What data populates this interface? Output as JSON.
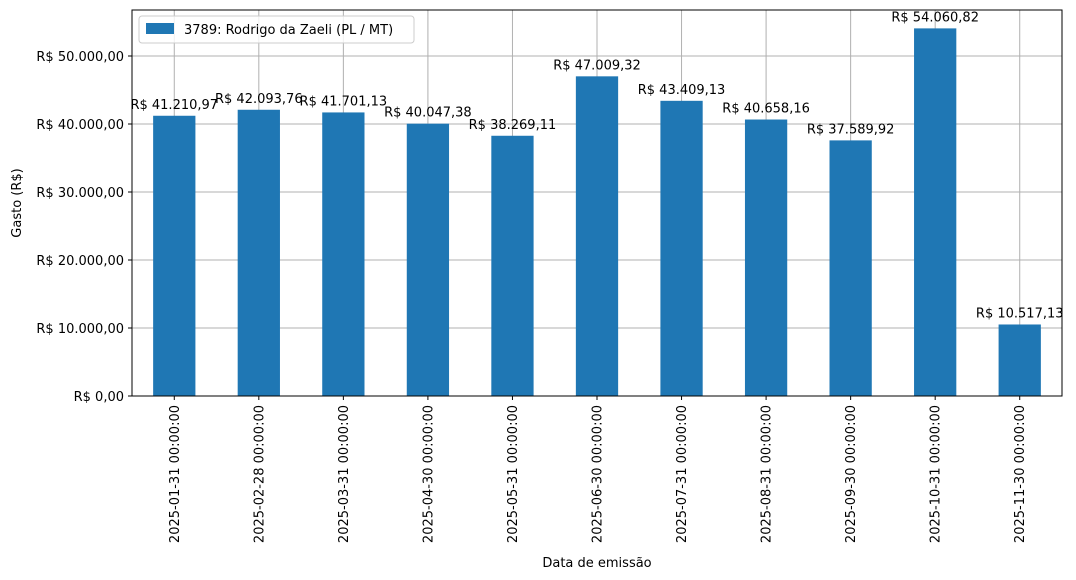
{
  "chart_data": {
    "type": "bar",
    "xlabel": "Data de emissão",
    "ylabel": "Gasto (R$)",
    "categories": [
      "2025-01-31 00:00:00",
      "2025-02-28 00:00:00",
      "2025-03-31 00:00:00",
      "2025-04-30 00:00:00",
      "2025-05-31 00:00:00",
      "2025-06-30 00:00:00",
      "2025-07-31 00:00:00",
      "2025-08-31 00:00:00",
      "2025-09-30 00:00:00",
      "2025-10-31 00:00:00",
      "2025-11-30 00:00:00"
    ],
    "series": [
      {
        "name": "3789: Rodrigo da Zaeli (PL / MT)",
        "color": "#1f77b4",
        "values": [
          41210.97,
          42093.76,
          41701.13,
          40047.38,
          38269.11,
          47009.32,
          43409.13,
          40658.16,
          37589.92,
          54060.82,
          10517.13
        ]
      }
    ],
    "data_labels": [
      "R$ 41.210,97",
      "R$ 42.093,76",
      "R$ 41.701,13",
      "R$ 40.047,38",
      "R$ 38.269,11",
      "R$ 47.009,32",
      "R$ 43.409,13",
      "R$ 40.658,16",
      "R$ 37.589,92",
      "R$ 54.060,82",
      "R$ 10.517,13"
    ],
    "yticks": [
      0,
      10000,
      20000,
      30000,
      40000,
      50000
    ],
    "ytick_labels": [
      "R$ 0,00",
      "R$ 10.000,00",
      "R$ 20.000,00",
      "R$ 30.000,00",
      "R$ 40.000,00",
      "R$ 50.000,00"
    ],
    "ylim": [
      0,
      56764
    ],
    "grid": true,
    "legend_position": "top-left"
  }
}
